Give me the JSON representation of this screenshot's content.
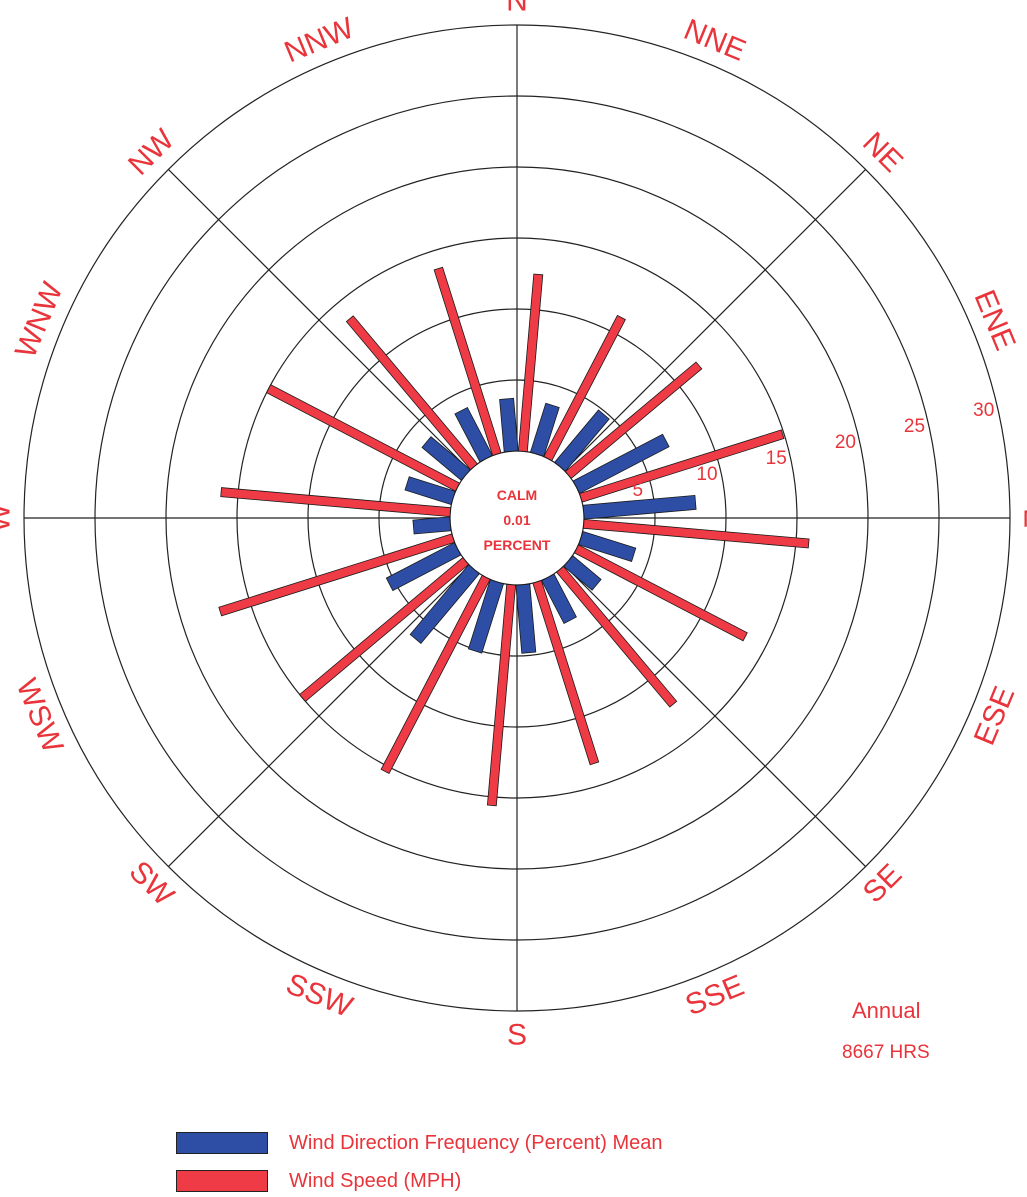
{
  "chart_data": {
    "type": "polar-bar",
    "title": "",
    "directions": [
      "N",
      "NNE",
      "NE",
      "ENE",
      "E",
      "ESE",
      "SE",
      "SSE",
      "S",
      "SSW",
      "SW",
      "WSW",
      "W",
      "WNW",
      "NW",
      "NNW"
    ],
    "ring_labels": [
      "5",
      "10",
      "15",
      "20",
      "25",
      "30"
    ],
    "rmax": 30,
    "calm": {
      "label": "CALM",
      "value": "0.01",
      "unit": "PERCENT"
    },
    "series": [
      {
        "name": "Wind Direction Frequency (Percent) Mean",
        "color": "#2e4ea6",
        "values": [
          3.7,
          3.6,
          4.8,
          7.1,
          7.9,
          3.9,
          2.6,
          3.4,
          4.8,
          5.1,
          6.4,
          5.4,
          2.6,
          3.4,
          3.6,
          3.8
        ]
      },
      {
        "name": "Wind Speed (MPH)",
        "color": "#ef3b45",
        "values": [
          12.5,
          11.2,
          12.0,
          14.9,
          15.9,
          13.4,
          12.4,
          13.4,
          15.6,
          15.4,
          15.0,
          17.2,
          16.2,
          15.0,
          13.6,
          13.7
        ]
      }
    ],
    "annotations": {
      "period": "Annual",
      "hours": "8667 HRS"
    }
  }
}
